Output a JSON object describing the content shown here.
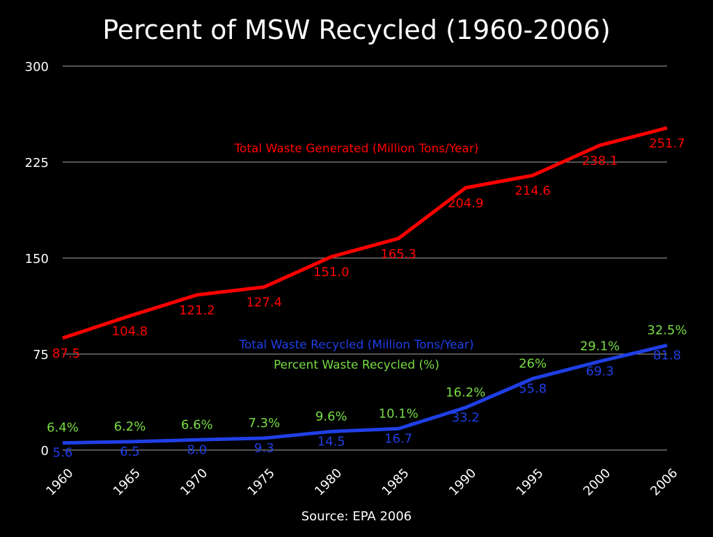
{
  "chart_data": {
    "type": "line",
    "title": "Percent of MSW Recycled (1960-2006)",
    "source": "Source: EPA 2006",
    "categories": [
      "1960",
      "1965",
      "1970",
      "1975",
      "1980",
      "1985",
      "1990",
      "1995",
      "2000",
      "2006"
    ],
    "ylim": [
      0,
      300
    ],
    "yticks": [
      "0",
      "75",
      "150",
      "225",
      "300"
    ],
    "grid": true,
    "series": [
      {
        "name": "Total Waste Generated (Million Tons/Year)",
        "color": "#ff0000",
        "values": [
          87.5,
          104.8,
          121.2,
          127.4,
          151.0,
          165.3,
          204.9,
          214.6,
          238.1,
          251.7
        ],
        "labels": [
          "87.5",
          "104.8",
          "121.2",
          "127.4",
          "151.0",
          "165.3",
          "204.9",
          "214.6",
          "238.1",
          "251.7"
        ]
      },
      {
        "name": "Total Waste Recycled (Million Tons/Year)",
        "color": "#1f3fe6",
        "values": [
          5.6,
          6.5,
          8.0,
          9.3,
          14.5,
          16.7,
          33.2,
          55.8,
          69.3,
          81.8
        ],
        "labels": [
          "5.6",
          "6.5",
          "8.0",
          "9.3",
          "14.5",
          "16.7",
          "33.2",
          "55.8",
          "69.3",
          "81.8"
        ]
      }
    ],
    "percent_recycled": {
      "name": "Percent Waste Recycled (%)",
      "color": "#77dd44",
      "values": [
        6.4,
        6.2,
        6.6,
        7.3,
        9.6,
        10.1,
        16.2,
        26,
        29.1,
        32.5
      ],
      "labels": [
        "6.4%",
        "6.2%",
        "6.6%",
        "7.3%",
        "9.6%",
        "10.1%",
        "16.2%",
        "26%",
        "29.1%",
        "32.5%"
      ]
    }
  }
}
